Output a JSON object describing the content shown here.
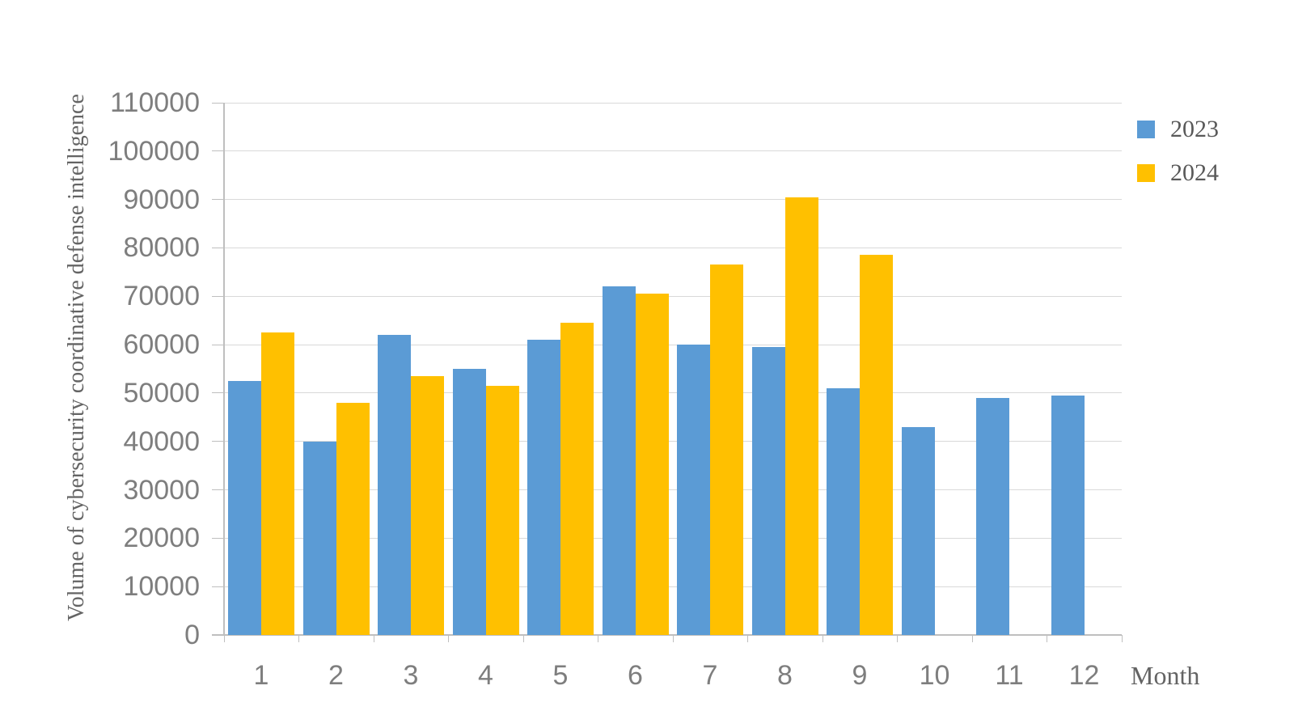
{
  "chart_data": {
    "type": "bar",
    "title": "",
    "categories": [
      "1",
      "2",
      "3",
      "4",
      "5",
      "6",
      "7",
      "8",
      "9",
      "10",
      "11",
      "12"
    ],
    "series": [
      {
        "name": "2023",
        "color": "#5B9BD5",
        "values": [
          52500,
          40000,
          62000,
          55000,
          61000,
          72000,
          60000,
          59500,
          51000,
          43000,
          49000,
          49500
        ]
      },
      {
        "name": "2024",
        "color": "#FFC000",
        "values": [
          62500,
          48000,
          53500,
          51500,
          64500,
          70500,
          76500,
          90500,
          78500,
          null,
          null,
          null
        ]
      }
    ],
    "xlabel": "Month",
    "ylabel": "Volume of cybersecurity coordinative defense intelligence",
    "ylim": [
      0,
      110000
    ],
    "ytick_step": 10000,
    "ytick_labels": [
      "0",
      "10000",
      "20000",
      "30000",
      "40000",
      "50000",
      "60000",
      "70000",
      "80000",
      "90000",
      "100000",
      "110000"
    ],
    "grid": true,
    "legend_position": "top-right",
    "colors": {
      "gridline": "#D9D9D9",
      "axis_line": "#BFBFBF",
      "tick_text": "#7E7E7E",
      "label_text": "#646464"
    }
  }
}
